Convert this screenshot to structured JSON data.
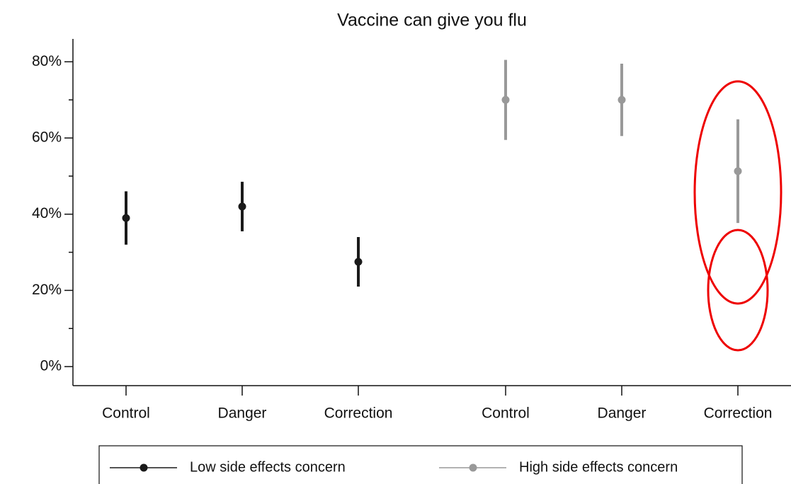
{
  "chart_data": {
    "type": "errorbar",
    "title": "Vaccine can give you flu",
    "categories": [
      "Control",
      "Danger",
      "Correction",
      "Control",
      "Danger",
      "Correction"
    ],
    "series": [
      {
        "name": "Low side effects concern",
        "color": "#1a1a1a",
        "values": [
          39,
          42,
          27.5,
          null,
          null,
          null
        ],
        "errors": [
          7,
          6.5,
          6.5,
          null,
          null,
          null
        ]
      },
      {
        "name": "High side effects concern",
        "color": "#999999",
        "values": [
          null,
          null,
          null,
          70,
          70,
          51.3
        ],
        "errors": [
          null,
          null,
          null,
          10.5,
          9.5,
          13.6
        ]
      }
    ],
    "ylim": [
      -5,
      86
    ],
    "yticks": [
      {
        "value": 0,
        "label": "0%"
      },
      {
        "value": 20,
        "label": "20%"
      },
      {
        "value": 40,
        "label": "40%"
      },
      {
        "value": 60,
        "label": "60%"
      },
      {
        "value": 80,
        "label": "80%"
      }
    ],
    "yminor_ticks": [
      10,
      30,
      50,
      70
    ]
  }
}
